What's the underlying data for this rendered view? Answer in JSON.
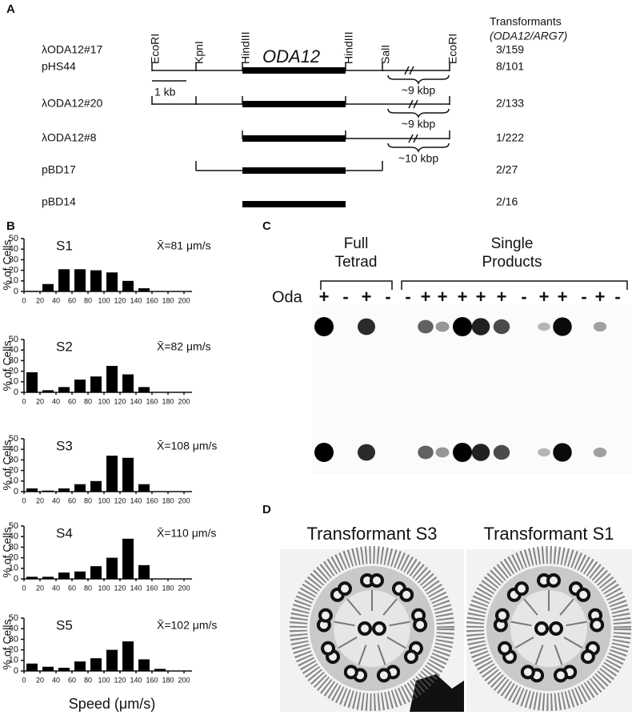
{
  "panel_a": {
    "label": "A",
    "sites": [
      "EcoRI",
      "KpnI",
      "HindIII",
      "HindIII",
      "SalI",
      "EcoRI"
    ],
    "gene": "ODA12",
    "scale_label": "1 kb",
    "column_header": "Transformants",
    "column_subheader": "(ODA12/ARG7)",
    "rows": [
      {
        "names": [
          "λODA12#17",
          "pHS44"
        ],
        "results": [
          "3/159",
          "8/101"
        ],
        "gap": "~9 kbp"
      },
      {
        "names": [
          "λODA12#20"
        ],
        "results": [
          "2/133"
        ],
        "gap": "~9 kbp"
      },
      {
        "names": [
          "λODA12#8"
        ],
        "results": [
          "1/222"
        ],
        "gap": "~10 kbp"
      },
      {
        "names": [
          "pBD17"
        ],
        "results": [
          "2/27"
        ]
      },
      {
        "names": [
          "pBD14"
        ],
        "results": [
          "2/16"
        ]
      }
    ]
  },
  "panel_b": {
    "label": "B"
  },
  "chart_data": [
    {
      "type": "histogram",
      "title": "S1",
      "annotation": "X̄=81 μm/s",
      "y_label": "% of Cells",
      "bins": [
        0,
        20,
        40,
        60,
        80,
        100,
        120,
        140,
        160,
        180,
        200
      ],
      "values": [
        0.5,
        7,
        21,
        21,
        20,
        18,
        10,
        3,
        0,
        0
      ],
      "color": "#000000",
      "xlim": [
        0,
        210
      ],
      "xticks": [
        0,
        20,
        40,
        60,
        80,
        100,
        120,
        140,
        160,
        180,
        200
      ],
      "ylim": [
        0,
        50
      ],
      "yticks": [
        0,
        10,
        20,
        30,
        40,
        50
      ]
    },
    {
      "type": "histogram",
      "title": "S2",
      "annotation": "X̄=82 μm/s",
      "y_label": "% of Cells",
      "bins": [
        0,
        20,
        40,
        60,
        80,
        100,
        120,
        140,
        160,
        180,
        200
      ],
      "values": [
        19,
        2,
        5,
        12,
        15,
        25,
        17,
        5,
        0,
        0
      ],
      "color": "#000000",
      "xlim": [
        0,
        210
      ],
      "xticks": [
        0,
        20,
        40,
        60,
        80,
        100,
        120,
        140,
        160,
        180,
        200
      ],
      "ylim": [
        0,
        50
      ],
      "yticks": [
        0,
        10,
        20,
        30,
        40,
        50
      ]
    },
    {
      "type": "histogram",
      "title": "S3",
      "annotation": "X̄=108 μm/s",
      "y_label": "% of Cells",
      "bins": [
        0,
        20,
        40,
        60,
        80,
        100,
        120,
        140,
        160,
        180,
        200
      ],
      "values": [
        3,
        1,
        3,
        7,
        10,
        34,
        32,
        7,
        0,
        0
      ],
      "color": "#000000",
      "xlim": [
        0,
        210
      ],
      "xticks": [
        0,
        20,
        40,
        60,
        80,
        100,
        120,
        140,
        160,
        180,
        200
      ],
      "ylim": [
        0,
        50
      ],
      "yticks": [
        0,
        10,
        20,
        30,
        40,
        50
      ]
    },
    {
      "type": "histogram",
      "title": "S4",
      "annotation": "X̄=110 μm/s",
      "y_label": "% of Cells",
      "bins": [
        0,
        20,
        40,
        60,
        80,
        100,
        120,
        140,
        160,
        180,
        200
      ],
      "values": [
        2,
        2,
        6,
        7,
        12,
        20,
        38,
        13,
        0,
        0
      ],
      "color": "#000000",
      "xlim": [
        0,
        210
      ],
      "xticks": [
        0,
        20,
        40,
        60,
        80,
        100,
        120,
        140,
        160,
        180,
        200
      ],
      "ylim": [
        0,
        50
      ],
      "yticks": [
        0,
        10,
        20,
        30,
        40,
        50
      ]
    },
    {
      "type": "histogram",
      "title": "S5",
      "annotation": "X̄=102 μm/s",
      "y_label": "% of Cells",
      "x_label": "Speed (μm/s)",
      "bins": [
        0,
        20,
        40,
        60,
        80,
        100,
        120,
        140,
        160,
        180,
        200
      ],
      "values": [
        7,
        4,
        3,
        9,
        12,
        20,
        28,
        11,
        2,
        0
      ],
      "color": "#000000",
      "xlim": [
        0,
        210
      ],
      "xticks": [
        0,
        20,
        40,
        60,
        80,
        100,
        120,
        140,
        160,
        180,
        200
      ],
      "ylim": [
        0,
        50
      ],
      "yticks": [
        0,
        10,
        20,
        30,
        40,
        50
      ]
    }
  ],
  "panel_c": {
    "label": "C",
    "full_title": [
      "Full",
      "Tetrad"
    ],
    "single_title": [
      "Single",
      "Products"
    ],
    "row_label": "Oda",
    "full_lanes": [
      "+",
      "-",
      "+",
      "-"
    ],
    "single_lanes": [
      "-",
      "+",
      "+",
      "+",
      "+",
      "+",
      "-",
      "+",
      "+",
      "-",
      "+",
      "-"
    ]
  },
  "panel_d": {
    "label": "D",
    "titles": [
      "Transformant S3",
      "Transformant S1"
    ]
  }
}
